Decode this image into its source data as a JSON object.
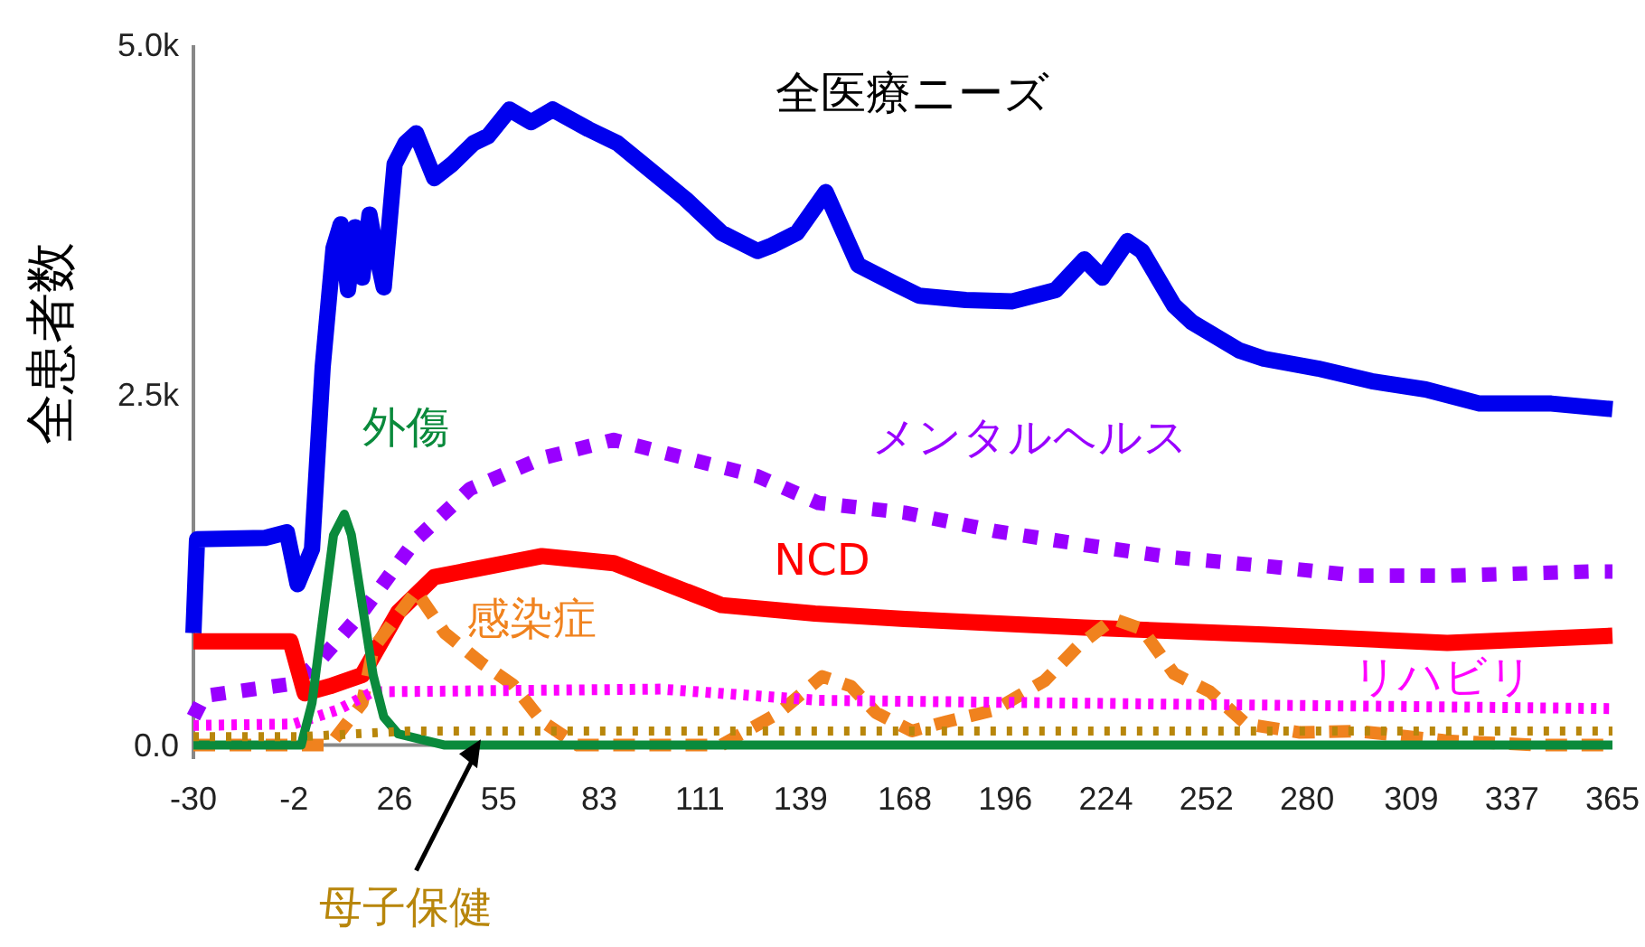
{
  "chart_data": {
    "type": "line",
    "title": "全医療ニーズ",
    "ylabel": "全患者数",
    "xlim": [
      -30,
      365
    ],
    "xticks": [
      -30,
      -2,
      26,
      55,
      83,
      111,
      139,
      168,
      196,
      224,
      252,
      280,
      309,
      337,
      365
    ],
    "ylim": [
      -100,
      5000
    ],
    "yticks": [
      {
        "value": 0,
        "label": "0.0"
      },
      {
        "value": 2500,
        "label": "2.5k"
      },
      {
        "value": 5000,
        "label": "5.0k"
      }
    ],
    "grid": false,
    "marker": "none",
    "series": [
      {
        "color": "#0000ee",
        "line_style": "solid",
        "x": [
          -30,
          -29,
          -10,
          -4,
          -1,
          3,
          6,
          9,
          11,
          13,
          15,
          17,
          19,
          21,
          23,
          26,
          29,
          32,
          37,
          42,
          48,
          52,
          58,
          64,
          70,
          80,
          88,
          97,
          107,
          117,
          127,
          131,
          138,
          146,
          155,
          165,
          172,
          185,
          198,
          210,
          218,
          223,
          230,
          234,
          243,
          248,
          261,
          268,
          283,
          298,
          313,
          328,
          348,
          365
        ],
        "values": [
          800,
          1470,
          1480,
          1520,
          1150,
          1400,
          2700,
          3550,
          3720,
          3250,
          3700,
          3340,
          3790,
          3500,
          3270,
          4150,
          4300,
          4370,
          4050,
          4150,
          4300,
          4350,
          4540,
          4450,
          4540,
          4400,
          4300,
          4110,
          3900,
          3660,
          3530,
          3570,
          3660,
          3950,
          3430,
          3300,
          3210,
          3180,
          3170,
          3250,
          3470,
          3340,
          3600,
          3530,
          3140,
          3020,
          2820,
          2760,
          2690,
          2600,
          2540,
          2440,
          2440,
          2400
        ]
      },
      {
        "name": "メンタルヘルス",
        "color": "#9900ff",
        "line_style": "dotted",
        "x": [
          -30,
          -27,
          -2,
          5,
          17,
          32,
          47,
          67,
          87,
          107,
          127,
          144,
          168,
          193,
          218,
          243,
          268,
          294,
          319,
          359,
          365
        ],
        "values": [
          200,
          350,
          440,
          600,
          950,
          1470,
          1830,
          2050,
          2180,
          2050,
          1920,
          1730,
          1660,
          1530,
          1430,
          1340,
          1280,
          1210,
          1210,
          1240,
          1240
        ]
      },
      {
        "name": "NCD",
        "color": "#ff0000",
        "line_style": "solid",
        "x": [
          -30,
          -3,
          1,
          8,
          17,
          27,
          37,
          67,
          87,
          117,
          143,
          168,
          218,
          268,
          319,
          365
        ],
        "values": [
          740,
          740,
          370,
          420,
          500,
          950,
          1200,
          1350,
          1300,
          1000,
          940,
          900,
          840,
          790,
          730,
          780
        ]
      },
      {
        "name": "感染症",
        "color": "#f0821e",
        "line_style": "dashed",
        "x": [
          -30,
          8,
          17,
          20,
          32,
          40,
          50,
          59,
          67,
          77,
          90,
          117,
          133,
          145,
          153,
          160,
          170,
          180,
          193,
          207,
          216,
          226,
          234,
          243,
          253,
          263,
          278,
          294,
          319,
          344,
          365
        ],
        "values": [
          0,
          0,
          300,
          690,
          1100,
          800,
          590,
          430,
          170,
          0,
          0,
          0,
          230,
          490,
          420,
          230,
          100,
          170,
          250,
          460,
          700,
          900,
          830,
          510,
          380,
          150,
          90,
          100,
          30,
          0,
          0
        ]
      },
      {
        "name": "リハビリ",
        "color": "#ff00ff",
        "line_style": "dotted",
        "x": [
          -30,
          -2,
          10,
          20,
          100,
          144,
          250,
          365
        ],
        "values": [
          140,
          150,
          250,
          380,
          400,
          320,
          290,
          260
        ]
      },
      {
        "name": "外傷",
        "color": "#0a8a3c",
        "line_style": "solid",
        "x": [
          -30,
          0,
          3,
          6,
          9,
          12,
          14,
          17,
          20,
          23,
          27,
          40,
          365
        ],
        "values": [
          0,
          0,
          300,
          900,
          1500,
          1650,
          1500,
          1000,
          500,
          200,
          80,
          0,
          0
        ]
      },
      {
        "name": "母子保健",
        "color": "#b8860b",
        "line_style": "dotted",
        "x": [
          -30,
          0,
          30,
          365
        ],
        "values": [
          60,
          60,
          100,
          100
        ]
      }
    ]
  }
}
